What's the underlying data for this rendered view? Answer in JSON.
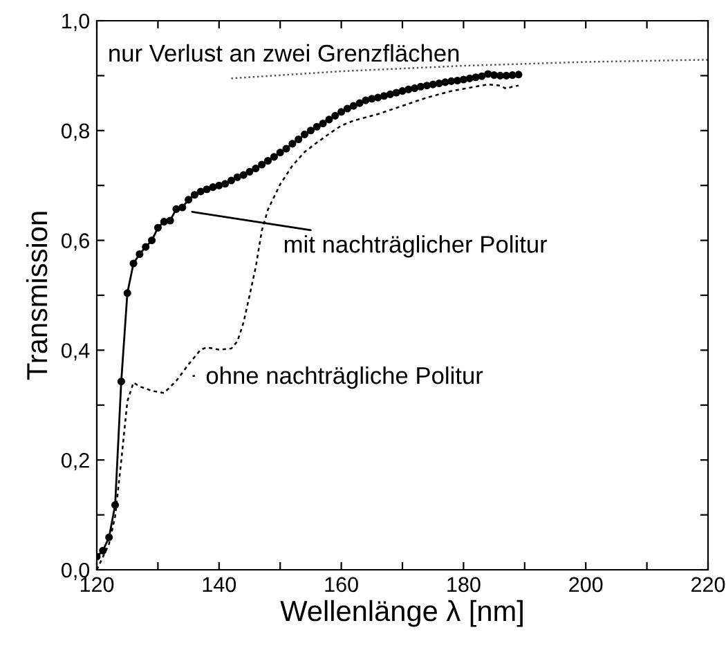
{
  "chart_data": {
    "type": "line",
    "xlabel": "Wellenlänge λ [nm]",
    "ylabel": "Transmission",
    "xlim": [
      120,
      220
    ],
    "ylim": [
      0,
      1
    ],
    "xticks": [
      120,
      {
        "value": 130,
        "label": null
      },
      140,
      {
        "value": 150,
        "label": null
      },
      160,
      {
        "value": 170,
        "label": null
      },
      180,
      {
        "value": 190,
        "label": null
      },
      200,
      {
        "value": 210,
        "label": null
      },
      220
    ],
    "yticks": [
      {
        "value": 0,
        "label": "0,0"
      },
      {
        "value": 0.1,
        "label": null
      },
      {
        "value": 0.2,
        "label": "0,2"
      },
      {
        "value": 0.3,
        "label": null
      },
      {
        "value": 0.4,
        "label": "0,4"
      },
      {
        "value": 0.5,
        "label": null
      },
      {
        "value": 0.6,
        "label": "0,6"
      },
      {
        "value": 0.7,
        "label": null
      },
      {
        "value": 0.8,
        "label": "0,8"
      },
      {
        "value": 0.9,
        "label": null
      },
      {
        "value": 1.0,
        "label": "1,0"
      }
    ],
    "grid": false,
    "legend": false,
    "series": [
      {
        "color": "#000000",
        "marker": "circle",
        "line_style": "solid",
        "x": [
          120,
          121,
          122,
          123,
          124,
          125,
          126,
          127,
          128,
          129,
          130,
          131,
          132,
          133,
          134,
          135,
          136,
          137,
          138,
          139,
          140,
          141,
          142,
          143,
          144,
          145,
          146,
          147,
          148,
          149,
          150,
          151,
          152,
          153,
          154,
          155,
          156,
          157,
          158,
          159,
          160,
          161,
          162,
          163,
          164,
          165,
          166,
          167,
          168,
          169,
          170,
          171,
          172,
          173,
          174,
          175,
          176,
          177,
          178,
          179,
          180,
          181,
          182,
          183,
          184,
          185,
          186,
          187,
          188,
          189
        ],
        "values": [
          0.024,
          0.035,
          0.059,
          0.118,
          0.343,
          0.504,
          0.558,
          0.575,
          0.588,
          0.6,
          0.623,
          0.634,
          0.636,
          0.657,
          0.66,
          0.674,
          0.683,
          0.689,
          0.693,
          0.697,
          0.7,
          0.703,
          0.709,
          0.715,
          0.719,
          0.725,
          0.731,
          0.738,
          0.745,
          0.752,
          0.76,
          0.767,
          0.776,
          0.784,
          0.793,
          0.8,
          0.807,
          0.813,
          0.82,
          0.827,
          0.834,
          0.84,
          0.845,
          0.85,
          0.855,
          0.858,
          0.86,
          0.863,
          0.866,
          0.869,
          0.872,
          0.875,
          0.877,
          0.88,
          0.882,
          0.884,
          0.886,
          0.888,
          0.89,
          0.891,
          0.893,
          0.895,
          0.897,
          0.899,
          0.903,
          0.901,
          0.9,
          0.9,
          0.901,
          0.902
        ]
      },
      {
        "color": "#000000",
        "marker": "none",
        "line_style": "dashed",
        "x": [
          120,
          122,
          123,
          124,
          125,
          126,
          127,
          129,
          131,
          133,
          135,
          137,
          138,
          140,
          142,
          143,
          144,
          145,
          146,
          147,
          148,
          150,
          152,
          154,
          156,
          158,
          160,
          162,
          166,
          170,
          174,
          178,
          182,
          184,
          186,
          187,
          188,
          189
        ],
        "values": [
          0.0,
          0.047,
          0.097,
          0.198,
          0.307,
          0.341,
          0.334,
          0.326,
          0.322,
          0.344,
          0.374,
          0.401,
          0.405,
          0.401,
          0.403,
          0.416,
          0.45,
          0.5,
          0.551,
          0.618,
          0.656,
          0.702,
          0.736,
          0.761,
          0.778,
          0.794,
          0.809,
          0.818,
          0.83,
          0.845,
          0.86,
          0.872,
          0.88,
          0.884,
          0.882,
          0.876,
          0.88,
          0.882
        ]
      },
      {
        "color": "#555555",
        "marker": "none",
        "line_style": "dotted",
        "x": [
          142,
          160,
          180,
          200,
          220
        ],
        "values": [
          0.895,
          0.908,
          0.918,
          0.925,
          0.929
        ]
      }
    ],
    "annotations": [
      "nur Verlust an zwei Grenzflächen",
      "mit nachträglicher Politur",
      "ohne nachträgliche Politur"
    ]
  }
}
